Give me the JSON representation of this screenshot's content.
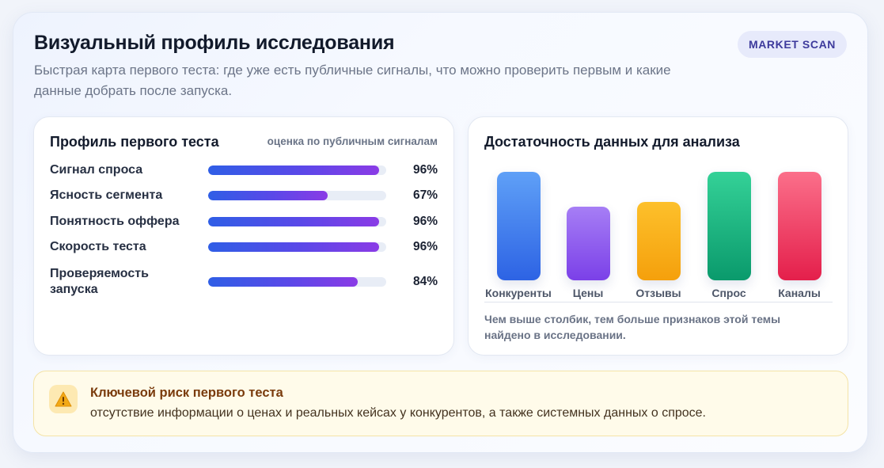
{
  "header": {
    "title": "Визуальный профиль исследования",
    "subtitle": "Быстрая карта первого теста: где уже есть публичные сигналы, что можно проверить первым и какие данные добрать после запуска.",
    "tag": "MARKET SCAN"
  },
  "profile": {
    "title": "Профиль первого теста",
    "note": "оценка по публичным сигналам",
    "metrics": [
      {
        "label": "Сигнал спроса",
        "value": 96,
        "display": "96%"
      },
      {
        "label": "Ясность сегмента",
        "value": 67,
        "display": "67%"
      },
      {
        "label": "Понятность оффера",
        "value": 96,
        "display": "96%"
      },
      {
        "label": "Скорость теста",
        "value": 96,
        "display": "96%"
      },
      {
        "label": "Проверяемость запуска",
        "value": 84,
        "display": "84%"
      }
    ]
  },
  "chart_data": {
    "type": "bar",
    "title": "Достаточность данных для анализа",
    "categories": [
      "Конкуренты",
      "Цены",
      "Отзывы",
      "Спрос",
      "Каналы"
    ],
    "values": [
      100,
      68,
      72,
      100,
      100
    ],
    "ylim": [
      0,
      100
    ],
    "colors": [
      [
        "#5fa0f7",
        "#2d63e4"
      ],
      [
        "#a67ef5",
        "#7b40e8"
      ],
      [
        "#fdc02b",
        "#f5a00c"
      ],
      [
        "#34d197",
        "#0a9a6c"
      ],
      [
        "#fb6f8a",
        "#e41f4b"
      ]
    ],
    "note": "Чем выше столбик, тем больше признаков этой темы найдено в исследовании."
  },
  "risk": {
    "icon": "warning-icon",
    "title": "Ключевой риск первого теста",
    "text": "отсутствие информации о ценах и реальных кейсах у конкурентов, а также системных данных о спросе."
  }
}
